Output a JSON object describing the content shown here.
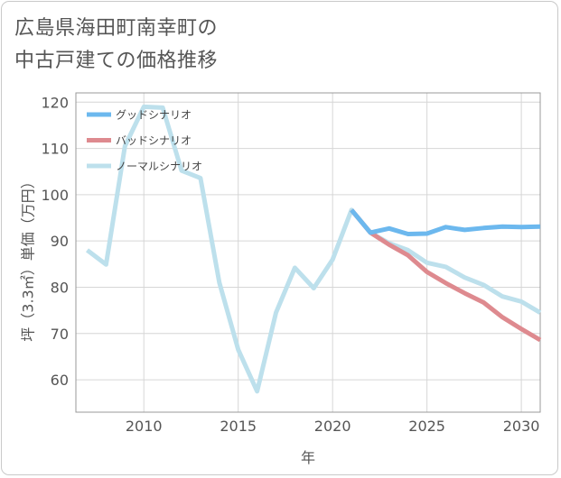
{
  "page": {
    "title_line1": "広島県海田町南幸町の",
    "title_line2": "中古戸建ての価格推移"
  },
  "chart_data": {
    "type": "line",
    "title": "広島県海田町南幸町の中古戸建ての価格推移",
    "xlabel": "年",
    "ylabel": "坪（3.3㎡）単価（万円）",
    "xlim": [
      2006.4,
      2031
    ],
    "ylim": [
      53,
      122
    ],
    "xticks": [
      2010,
      2015,
      2020,
      2025,
      2030
    ],
    "yticks": [
      60,
      70,
      80,
      90,
      100,
      110,
      120
    ],
    "grid": true,
    "legend_position": "top-left",
    "series": [
      {
        "name": "グッドシナリオ",
        "color": "#6cb8ee",
        "x": [
          2021,
          2022,
          2023,
          2024,
          2025,
          2026,
          2027,
          2028,
          2029,
          2030,
          2031
        ],
        "values": [
          96.7,
          91.8,
          92.7,
          91.5,
          91.6,
          93.0,
          92.4,
          92.8,
          93.1,
          93.0,
          93.1
        ]
      },
      {
        "name": "バッドシナリオ",
        "color": "#de8a8f",
        "x": [
          2021,
          2022,
          2023,
          2024,
          2025,
          2026,
          2027,
          2028,
          2029,
          2030,
          2031
        ],
        "values": [
          96.7,
          91.8,
          89.2,
          86.9,
          83.3,
          80.9,
          78.7,
          76.7,
          73.5,
          71.0,
          68.6
        ]
      },
      {
        "name": "ノーマルシナリオ",
        "color": "#bde0ec",
        "x": [
          2007,
          2008,
          2009,
          2010,
          2011,
          2012,
          2013,
          2014,
          2015,
          2016,
          2017,
          2018,
          2019,
          2020,
          2021,
          2022,
          2023,
          2024,
          2025,
          2026,
          2027,
          2028,
          2029,
          2030,
          2031
        ],
        "values": [
          88.0,
          84.9,
          110.5,
          119.0,
          118.8,
          105.2,
          103.6,
          81.0,
          66.5,
          57.5,
          74.5,
          84.2,
          79.8,
          86.0,
          96.7,
          91.8,
          89.5,
          88.0,
          85.3,
          84.4,
          82.1,
          80.5,
          78.0,
          76.9,
          74.5
        ]
      }
    ]
  }
}
